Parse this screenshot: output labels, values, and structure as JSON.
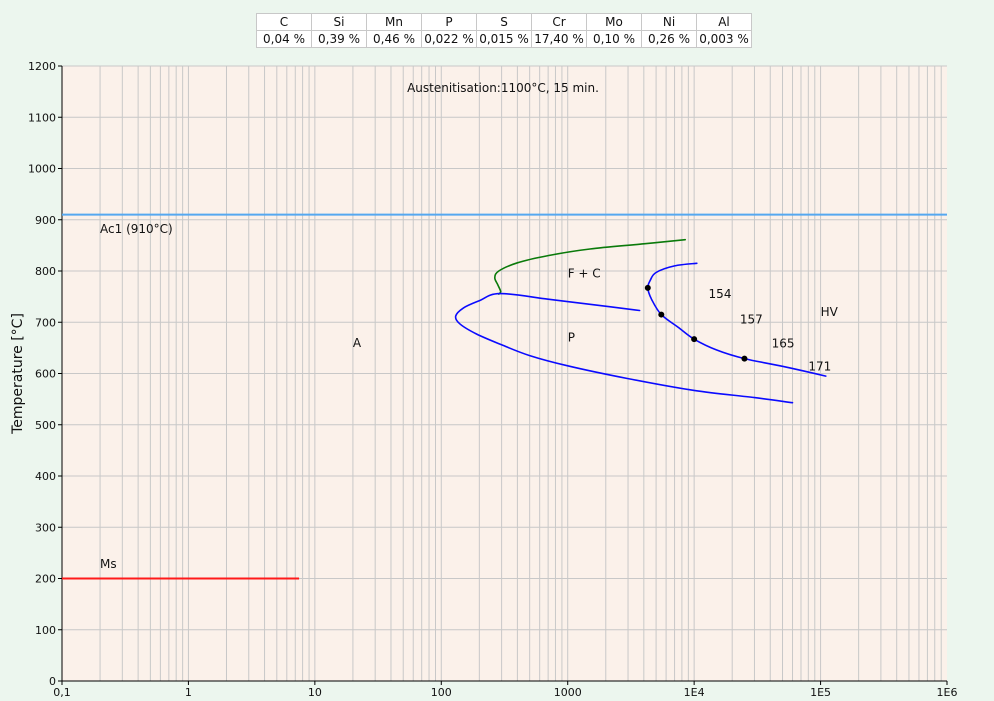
{
  "composition": {
    "headers": [
      "C",
      "Si",
      "Mn",
      "P",
      "S",
      "Cr",
      "Mo",
      "Ni",
      "Al"
    ],
    "values": [
      "0,04 %",
      "0,39 %",
      "0,46 %",
      "0,022 %",
      "0,015 %",
      "17,40 %",
      "0,10 %",
      "0,26 %",
      "0,003 %"
    ]
  },
  "chart_data": {
    "type": "line",
    "title": "Austenitisation:1100°C, 15 min.",
    "xlabel": "",
    "ylabel": "Temperature [°C]",
    "x_scale": "log",
    "xlim": [
      0.1,
      1000000
    ],
    "ylim": [
      0,
      1200
    ],
    "grid": true,
    "x_ticks": [
      {
        "value": 0.1,
        "label": "0,1"
      },
      {
        "value": 1,
        "label": "1"
      },
      {
        "value": 10,
        "label": "10"
      },
      {
        "value": 100,
        "label": "100"
      },
      {
        "value": 1000,
        "label": "1000"
      },
      {
        "value": 10000,
        "label": "1E4"
      },
      {
        "value": 100000,
        "label": "1E5"
      },
      {
        "value": 1000000,
        "label": "1E6"
      }
    ],
    "y_ticks": [
      {
        "value": 0,
        "label": "0"
      },
      {
        "value": 100,
        "label": "100"
      },
      {
        "value": 200,
        "label": "200"
      },
      {
        "value": 300,
        "label": "300"
      },
      {
        "value": 400,
        "label": "400"
      },
      {
        "value": 500,
        "label": "500"
      },
      {
        "value": 600,
        "label": "600"
      },
      {
        "value": 700,
        "label": "700"
      },
      {
        "value": 800,
        "label": "800"
      },
      {
        "value": 900,
        "label": "900"
      },
      {
        "value": 1000,
        "label": "1000"
      },
      {
        "value": 1100,
        "label": "1100"
      },
      {
        "value": 1200,
        "label": "1200"
      }
    ],
    "reference_lines": [
      {
        "label": "Ac1 (910°C)",
        "temperature": 910,
        "x_range": [
          0.1,
          1000000
        ],
        "color": "#55a8f0",
        "label_at": [
          0.2,
          882
        ]
      },
      {
        "label": "Ms",
        "temperature": 200,
        "x_range": [
          0.1,
          7.5
        ],
        "color": "#ff1a1a",
        "label_at": [
          0.2,
          228
        ]
      }
    ],
    "curves": [
      {
        "id": "ferrite-carbide-start",
        "color": "#0a7a0a",
        "points": [
          [
            8500,
            861
          ],
          [
            4000,
            853
          ],
          [
            1500,
            843
          ],
          [
            700,
            830
          ],
          [
            400,
            816
          ],
          [
            285,
            800
          ],
          [
            265,
            787
          ],
          [
            280,
            773
          ],
          [
            295,
            760
          ],
          [
            285,
            755
          ]
        ]
      },
      {
        "id": "pearlite-start",
        "color": "#0a0aff",
        "points": [
          [
            3700,
            723
          ],
          [
            1500,
            735
          ],
          [
            700,
            745
          ],
          [
            290,
            756
          ],
          [
            200,
            742
          ],
          [
            150,
            728
          ],
          [
            130,
            712
          ],
          [
            140,
            697
          ],
          [
            190,
            677
          ],
          [
            300,
            656
          ],
          [
            500,
            635
          ],
          [
            1000,
            615
          ],
          [
            3000,
            590
          ],
          [
            10000,
            567
          ],
          [
            30000,
            553
          ],
          [
            60000,
            543
          ]
        ]
      },
      {
        "id": "cooling-path",
        "color": "#0a0aff",
        "points": [
          [
            10500,
            815
          ],
          [
            7000,
            810
          ],
          [
            5000,
            797
          ],
          [
            4500,
            782
          ],
          [
            4300,
            767
          ],
          [
            4600,
            745
          ],
          [
            5500,
            715
          ],
          [
            7500,
            690
          ],
          [
            10000,
            667
          ],
          [
            15000,
            646
          ],
          [
            25000,
            629
          ],
          [
            50000,
            614
          ],
          [
            110000,
            595
          ]
        ]
      }
    ],
    "markers": [
      {
        "x": 4300,
        "y": 767
      },
      {
        "x": 5500,
        "y": 715
      },
      {
        "x": 10000,
        "y": 667
      },
      {
        "x": 25000,
        "y": 629
      }
    ],
    "annotations": [
      {
        "text": "154",
        "x": 13000,
        "y": 755
      },
      {
        "text": "157",
        "x": 23000,
        "y": 705
      },
      {
        "text": "165",
        "x": 41000,
        "y": 659
      },
      {
        "text": "171",
        "x": 80000,
        "y": 614
      },
      {
        "text": "HV",
        "x": 100000,
        "y": 720
      },
      {
        "text": "F + C",
        "x": 1000,
        "y": 795
      },
      {
        "text": "P",
        "x": 1000,
        "y": 670
      },
      {
        "text": "A",
        "x": 20,
        "y": 660
      }
    ],
    "colors": {
      "plot_background": "#fbf1ea",
      "grid": "#c8c8c8",
      "axis": "#000000"
    }
  }
}
